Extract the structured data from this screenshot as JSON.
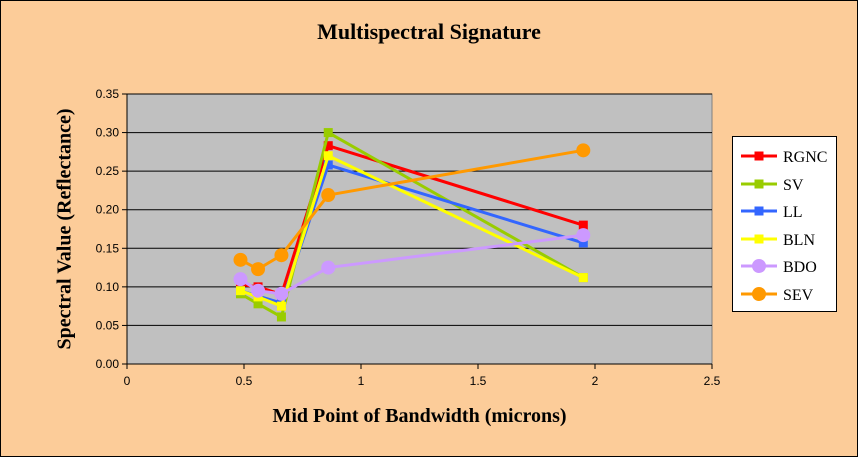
{
  "chart_data": {
    "type": "line",
    "title": "Multispectral Signature",
    "xlabel": "Mid Point of Bandwidth (microns)",
    "ylabel": "Spectral Value (Reflectance)",
    "xlim": [
      0,
      2.5
    ],
    "ylim": [
      0,
      0.35
    ],
    "xticks": [
      "0",
      "0.5",
      "1",
      "1.5",
      "2",
      "2.5"
    ],
    "yticks": [
      "0.00",
      "0.05",
      "0.10",
      "0.15",
      "0.20",
      "0.25",
      "0.30",
      "0.35"
    ],
    "grid": "horizontal",
    "legend_position": "right",
    "plot_background": "#c0c0c0",
    "chart_background": "#fccc99",
    "x": [
      0.485,
      0.56,
      0.66,
      0.86,
      1.95
    ],
    "series": [
      {
        "name": "RGNC",
        "color": "#ff0000",
        "marker": "square",
        "values": [
          0.103,
          0.1,
          0.09,
          0.283,
          0.18
        ]
      },
      {
        "name": "SV",
        "color": "#99cc00",
        "marker": "square",
        "values": [
          0.091,
          0.078,
          0.061,
          0.3,
          0.112
        ]
      },
      {
        "name": "LL",
        "color": "#3366ff",
        "marker": "square",
        "values": [
          0.095,
          0.088,
          0.079,
          0.258,
          0.157
        ]
      },
      {
        "name": "BLN",
        "color": "#ffff00",
        "marker": "square",
        "values": [
          0.095,
          0.087,
          0.075,
          0.27,
          0.112
        ]
      },
      {
        "name": "BDO",
        "color": "#cc99ff",
        "marker": "circle",
        "values": [
          0.11,
          0.095,
          0.091,
          0.125,
          0.167
        ]
      },
      {
        "name": "SEV",
        "color": "#ff9900",
        "marker": "circle",
        "values": [
          0.135,
          0.123,
          0.141,
          0.219,
          0.277
        ]
      }
    ]
  }
}
